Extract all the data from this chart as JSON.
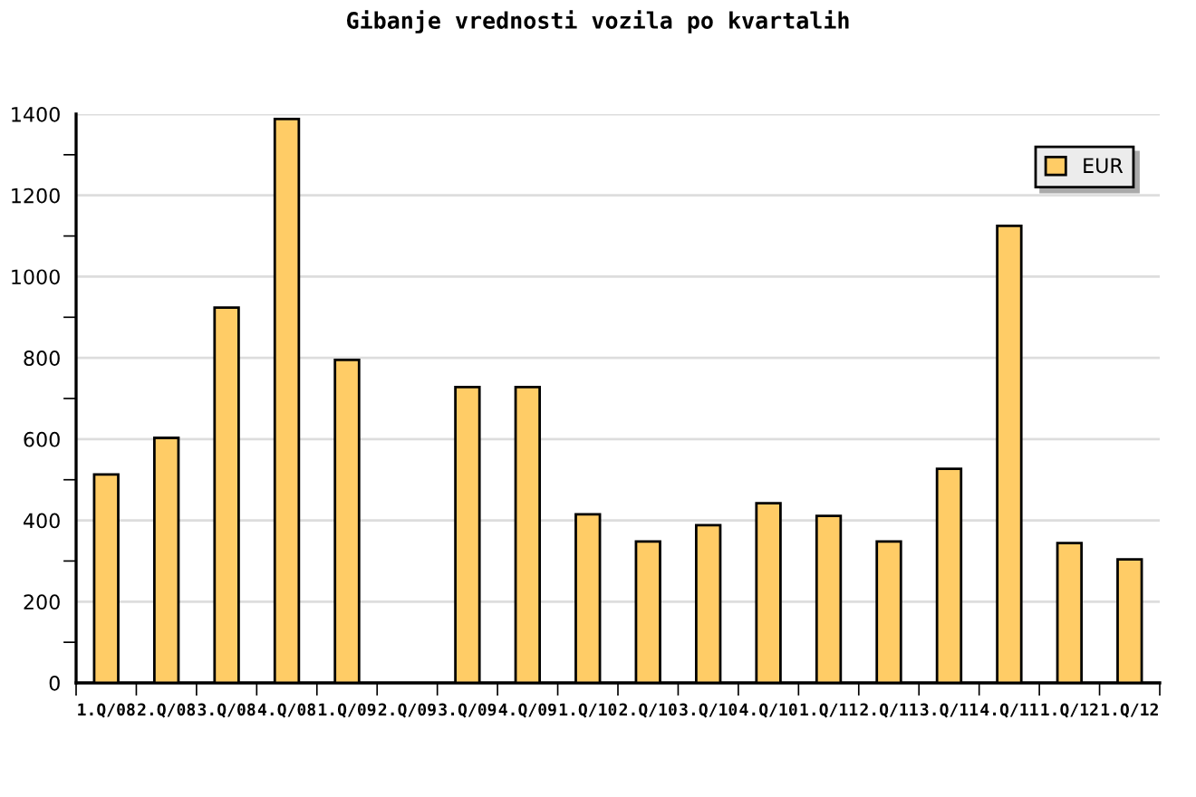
{
  "chart_data": {
    "type": "bar",
    "title": "Gibanje vrednosti vozila po kvartalih",
    "categories": [
      "1.Q/08",
      "2.Q/08",
      "3.Q/08",
      "4.Q/08",
      "1.Q/09",
      "2.Q/09",
      "3.Q/09",
      "4.Q/09",
      "1.Q/10",
      "2.Q/10",
      "3.Q/10",
      "4.Q/10",
      "1.Q/11",
      "2.Q/11",
      "3.Q/11",
      "4.Q/11",
      "1.Q/12",
      "1.Q/12"
    ],
    "series": [
      {
        "name": "EUR",
        "color": "#ffcc66",
        "values": [
          513,
          603,
          924,
          1388,
          795,
          null,
          728,
          728,
          415,
          348,
          388,
          442,
          411,
          348,
          527,
          1125,
          344,
          304
        ]
      }
    ],
    "ylim": [
      0,
      1400
    ],
    "yticks": [
      0,
      {
        "value": 100,
        "label": null
      },
      200,
      {
        "value": 300,
        "label": null
      },
      400,
      {
        "value": 500,
        "label": null
      },
      600,
      {
        "value": 700,
        "label": null
      },
      800,
      {
        "value": 900,
        "label": null
      },
      1000,
      {
        "value": 1100,
        "label": null
      },
      1200,
      {
        "value": 1300,
        "label": null
      },
      1400
    ],
    "grid": "y",
    "legend": "top right"
  }
}
